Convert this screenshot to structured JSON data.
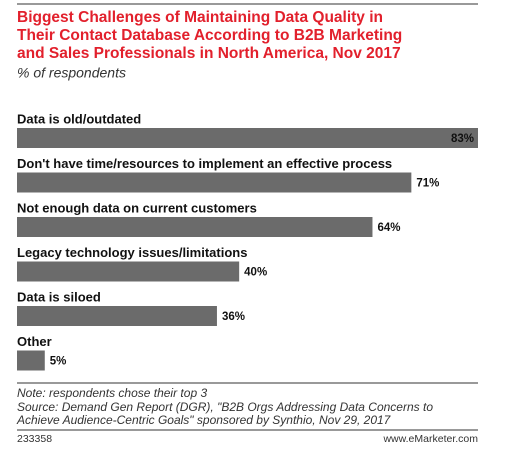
{
  "chart_data": {
    "type": "bar",
    "orientation": "horizontal",
    "title": [
      "Biggest Challenges of Maintaining Data Quality in",
      "Their Contact Database According to B2B Marketing",
      "and Sales Professionals in North America, Nov 2017"
    ],
    "subtitle": "% of respondents",
    "categories": [
      "Data is old/outdated",
      "Don't have time/resources to implement an effective process",
      "Not enough data on current customers",
      "Legacy technology issues/limitations",
      "Data is siloed",
      "Other"
    ],
    "values": [
      83,
      71,
      64,
      40,
      36,
      5
    ],
    "value_labels": [
      "83%",
      "71%",
      "64%",
      "40%",
      "36%",
      "5%"
    ],
    "color": "#6b6b6b",
    "note": "Note: respondents chose their top 3",
    "source": [
      "Source: Demand Gen Report (DGR), \"B2B Orgs Addressing Data Concerns to",
      "Achieve Audience-Centric Goals\" sponsored by Synthio, Nov 29, 2017"
    ],
    "chart_id": "233358",
    "publisher": "www.eMarketer.com"
  }
}
